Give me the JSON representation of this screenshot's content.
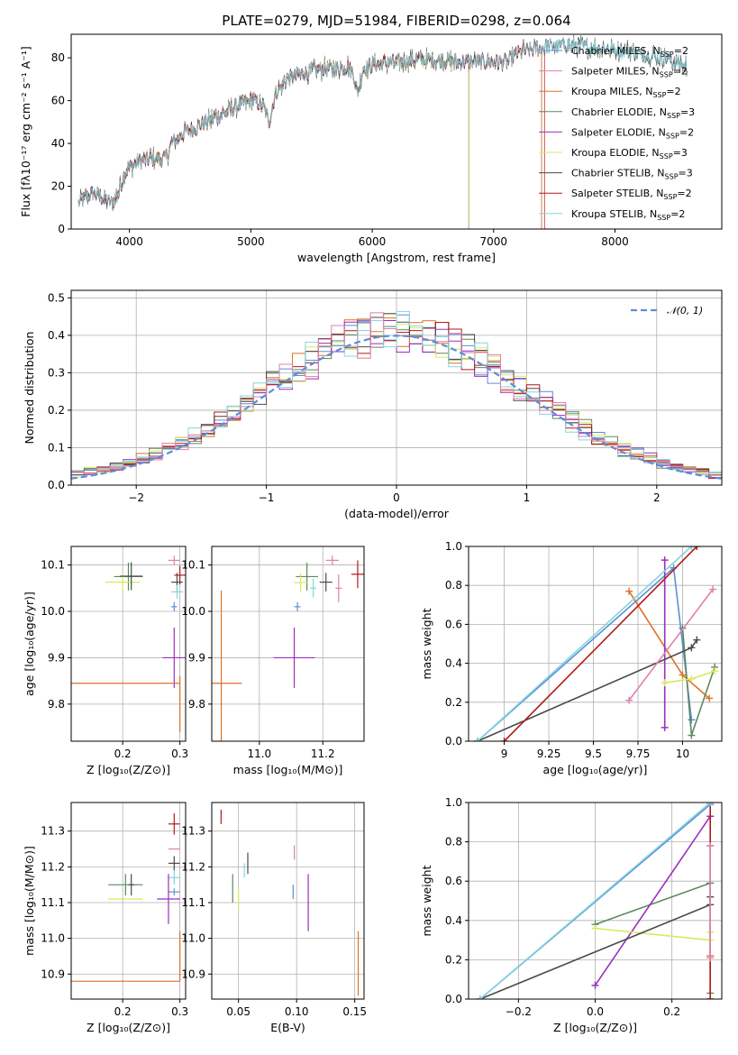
{
  "figure": {
    "title": "PLATE=0279, MJD=51984, FIBERID=0298, z=0.064"
  },
  "chart_data": [
    {
      "id": "spectrum",
      "type": "line",
      "xlabel": "wavelength [Angstrom, rest frame]",
      "ylabel": "Flux [fλ10⁻¹⁷ erg cm⁻² s⁻¹ A⁻¹]",
      "xlim": [
        3520,
        8880
      ],
      "ylim": [
        0,
        91
      ],
      "xticks": [
        4000,
        5000,
        6000,
        7000,
        8000
      ],
      "yticks": [
        0,
        20,
        40,
        60,
        80
      ],
      "grid": false,
      "legend_position": "right",
      "observed": {
        "name": "",
        "color": "#606060"
      },
      "continuum_anchors": [
        [
          3580,
          12
        ],
        [
          3700,
          17
        ],
        [
          3800,
          14
        ],
        [
          3850,
          12
        ],
        [
          3900,
          16
        ],
        [
          3950,
          24
        ],
        [
          4000,
          29
        ],
        [
          4100,
          32
        ],
        [
          4200,
          33
        ],
        [
          4300,
          33
        ],
        [
          4350,
          40
        ],
        [
          4450,
          45
        ],
        [
          4600,
          49
        ],
        [
          4700,
          52
        ],
        [
          4800,
          55
        ],
        [
          4900,
          58
        ],
        [
          5000,
          60
        ],
        [
          5100,
          58
        ],
        [
          5150,
          50
        ],
        [
          5200,
          63
        ],
        [
          5300,
          70
        ],
        [
          5400,
          72
        ],
        [
          5500,
          74
        ],
        [
          5600,
          75
        ],
        [
          5700,
          75
        ],
        [
          5800,
          76
        ],
        [
          5850,
          72
        ],
        [
          5880,
          63
        ],
        [
          5920,
          74
        ],
        [
          6000,
          77
        ],
        [
          6200,
          78
        ],
        [
          6400,
          79
        ],
        [
          6550,
          79
        ],
        [
          6700,
          78
        ],
        [
          6900,
          78
        ],
        [
          7100,
          78
        ],
        [
          7200,
          82
        ],
        [
          7400,
          85
        ],
        [
          7600,
          86
        ],
        [
          7800,
          85
        ],
        [
          8000,
          84
        ],
        [
          8200,
          82
        ],
        [
          8400,
          80
        ],
        [
          8600,
          76
        ]
      ],
      "series": [
        {
          "name": "Chabrier MILES, N_SSP=2",
          "color": "#5b8fd6",
          "end": 7400
        },
        {
          "name": "Salpeter MILES, N_SSP=2",
          "color": "#e07fae",
          "end": 7400
        },
        {
          "name": "Kroupa MILES, N_SSP=2",
          "color": "#de7127",
          "end": 7400
        },
        {
          "name": "Chabrier ELODIE, N_SSP=3",
          "color": "#5a8a5c",
          "end": 6800
        },
        {
          "name": "Salpeter ELODIE, N_SSP=2",
          "color": "#9b2fbb",
          "end": 6800
        },
        {
          "name": "Kroupa ELODIE, N_SSP=3",
          "color": "#d8ea5a",
          "end": 6800
        },
        {
          "name": "Chabrier STELIB, N_SSP=3",
          "color": "#4a4a4a",
          "end": 8700
        },
        {
          "name": "Salpeter STELIB, N_SSP=2",
          "color": "#b01a1a",
          "end": 7420
        },
        {
          "name": "Kroupa STELIB, N_SSP=2",
          "color": "#86d3dd",
          "end": 8700
        }
      ]
    },
    {
      "id": "residuals",
      "type": "area",
      "xlabel": "(data-model)/error",
      "ylabel": "Normed distribution",
      "xlim": [
        -2.5,
        2.5
      ],
      "ylim": [
        0,
        0.52
      ],
      "xticks": [
        -2,
        -1,
        0,
        1,
        2
      ],
      "yticks": [
        0.0,
        0.1,
        0.2,
        0.3,
        0.4,
        0.5
      ],
      "grid": true,
      "legend_position": "top-right",
      "reference": {
        "name": "𝒩(0, 1)",
        "color": "#5b8fd6",
        "mean": 0,
        "sigma": 1
      },
      "bin_width": 0.1,
      "series_colors": [
        "#5b8fd6",
        "#de7127",
        "#5a8a5c",
        "#9b2fbb",
        "#d8ea5a",
        "#4a4a4a",
        "#b01a1a",
        "#86d3dd",
        "#e07fae"
      ]
    },
    {
      "id": "age_vs_Z",
      "type": "scatter",
      "xlabel": "Z [log₁₀(Z/Z⊙)]",
      "ylabel": "age  [log₁₀(age/yr)]",
      "xlim": [
        0.11,
        0.31
      ],
      "ylim": [
        9.72,
        10.14
      ],
      "xticks": [
        0.2,
        0.3
      ],
      "yticks": [
        9.8,
        9.9,
        10.0,
        10.1
      ],
      "grid": true,
      "points": [
        {
          "x": 0.21,
          "y": 10.075,
          "ex": 0.025,
          "ey": 0.03,
          "color": "#5a8a5c"
        },
        {
          "x": 0.2,
          "y": 10.063,
          "ex": 0.03,
          "ey": 0.02,
          "color": "#d8ea5a"
        },
        {
          "x": 0.215,
          "y": 10.076,
          "ex": 0.02,
          "ey": 0.03,
          "color": "#4a4a4a"
        },
        {
          "x": 0.3,
          "y": 10.078,
          "ex": 0.01,
          "ey": 0.02,
          "color": "#b01a1a"
        },
        {
          "x": 0.29,
          "y": 10.11,
          "ex": 0.01,
          "ey": 0.01,
          "color": "#e07fae"
        },
        {
          "x": 0.295,
          "y": 10.063,
          "ex": 0.01,
          "ey": 0.02,
          "color": "#4a4a4a"
        },
        {
          "x": 0.295,
          "y": 10.042,
          "ex": 0.01,
          "ey": 0.015,
          "color": "#86d3dd"
        },
        {
          "x": 0.29,
          "y": 9.9,
          "ex": 0.02,
          "ey": 0.065,
          "color": "#9b2fbb"
        },
        {
          "x": 0.29,
          "y": 10.01,
          "ex": 0.005,
          "ey": 0.01,
          "color": "#5b8fd6"
        },
        {
          "x": 0.205,
          "y": 9.845,
          "ex": 0.095,
          "ey": 0.0,
          "color": "#de7127"
        },
        {
          "x": 0.3,
          "y": 9.8,
          "ex": 0.0,
          "ey": 0.06,
          "color": "#de7127"
        }
      ]
    },
    {
      "id": "age_vs_mass",
      "type": "scatter",
      "xlabel": "mass [log₁₀(M/M⊙)]",
      "ylabel": "",
      "xlim": [
        10.85,
        11.33
      ],
      "ylim": [
        9.72,
        10.14
      ],
      "xticks": [
        11.0,
        11.2
      ],
      "yticks": [
        9.8,
        9.9,
        10.0,
        10.1
      ],
      "grid": true,
      "points": [
        {
          "x": 10.88,
          "y": 9.845,
          "ex": 0.065,
          "ey": 0.2,
          "color": "#de7127"
        },
        {
          "x": 11.15,
          "y": 10.075,
          "ex": 0.035,
          "ey": 0.03,
          "color": "#5a8a5c"
        },
        {
          "x": 11.13,
          "y": 10.062,
          "ex": 0.02,
          "ey": 0.02,
          "color": "#d8ea5a"
        },
        {
          "x": 11.21,
          "y": 10.063,
          "ex": 0.02,
          "ey": 0.02,
          "color": "#4a4a4a"
        },
        {
          "x": 11.23,
          "y": 10.11,
          "ex": 0.02,
          "ey": 0.01,
          "color": "#e07fae"
        },
        {
          "x": 11.25,
          "y": 10.05,
          "ex": 0.01,
          "ey": 0.03,
          "color": "#e07fae"
        },
        {
          "x": 11.31,
          "y": 10.08,
          "ex": 0.02,
          "ey": 0.03,
          "color": "#b01a1a"
        },
        {
          "x": 11.17,
          "y": 10.05,
          "ex": 0.01,
          "ey": 0.02,
          "color": "#86d3dd"
        },
        {
          "x": 11.12,
          "y": 10.01,
          "ex": 0.01,
          "ey": 0.01,
          "color": "#5b8fd6"
        },
        {
          "x": 11.11,
          "y": 9.9,
          "ex": 0.065,
          "ey": 0.065,
          "color": "#9b2fbb"
        }
      ]
    },
    {
      "id": "weight_vs_age",
      "type": "line",
      "xlabel": "age  [log₁₀(age/yr)]",
      "ylabel": "mass weight",
      "xlim": [
        8.8,
        10.22
      ],
      "ylim": [
        0,
        1.0
      ],
      "xticks": [
        9.0,
        9.25,
        9.5,
        9.75,
        10.0
      ],
      "yticks": [
        0.0,
        0.2,
        0.4,
        0.6,
        0.8,
        1.0
      ],
      "grid": true,
      "series": [
        {
          "color": "#5b8fd6",
          "points": [
            [
              8.85,
              0.0
            ],
            [
              9.95,
              0.89
            ],
            [
              10.05,
              0.11
            ]
          ]
        },
        {
          "color": "#de7127",
          "points": [
            [
              9.7,
              0.77
            ],
            [
              10.0,
              0.34
            ],
            [
              10.15,
              0.22
            ]
          ]
        },
        {
          "color": "#5a8a5c",
          "points": [
            [
              10.0,
              0.58
            ],
            [
              10.05,
              0.03
            ],
            [
              10.18,
              0.38
            ]
          ]
        },
        {
          "color": "#9b2fbb",
          "points": [
            [
              9.9,
              0.93
            ],
            [
              9.9,
              0.07
            ]
          ]
        },
        {
          "color": "#d8ea5a",
          "points": [
            [
              9.9,
              0.3
            ],
            [
              10.05,
              0.32
            ],
            [
              10.18,
              0.36
            ]
          ]
        },
        {
          "color": "#4a4a4a",
          "points": [
            [
              8.85,
              0.0
            ],
            [
              10.05,
              0.48
            ],
            [
              10.08,
              0.52
            ]
          ]
        },
        {
          "color": "#b01a1a",
          "points": [
            [
              9.0,
              0.0
            ],
            [
              10.08,
              1.0
            ]
          ]
        },
        {
          "color": "#86d3dd",
          "points": [
            [
              8.85,
              0.0
            ],
            [
              10.05,
              1.0
            ]
          ]
        },
        {
          "color": "#e07fae",
          "points": [
            [
              9.7,
              0.21
            ],
            [
              10.17,
              0.78
            ]
          ]
        }
      ]
    },
    {
      "id": "mass_vs_Z",
      "type": "scatter",
      "xlabel": "Z [log₁₀(Z/Z⊙)]",
      "ylabel": "mass [log₁₀(M/M⊙)]",
      "xlim": [
        0.11,
        0.31
      ],
      "ylim": [
        10.83,
        11.38
      ],
      "xticks": [
        0.2,
        0.3
      ],
      "yticks": [
        10.9,
        11.0,
        11.1,
        11.2,
        11.3
      ],
      "grid": true,
      "points": [
        {
          "x": 0.205,
          "y": 11.15,
          "ex": 0.03,
          "ey": 0.03,
          "color": "#5a8a5c"
        },
        {
          "x": 0.205,
          "y": 11.11,
          "ex": 0.03,
          "ey": 0.0,
          "color": "#d8ea5a"
        },
        {
          "x": 0.215,
          "y": 11.15,
          "ex": 0.005,
          "ey": 0.03,
          "color": "#4a4a4a"
        },
        {
          "x": 0.29,
          "y": 11.32,
          "ex": 0.01,
          "ey": 0.03,
          "color": "#b01a1a"
        },
        {
          "x": 0.29,
          "y": 11.25,
          "ex": 0.01,
          "ey": 0.0,
          "color": "#e07fae"
        },
        {
          "x": 0.29,
          "y": 11.21,
          "ex": 0.01,
          "ey": 0.02,
          "color": "#4a4a4a"
        },
        {
          "x": 0.29,
          "y": 11.17,
          "ex": 0.01,
          "ey": 0.02,
          "color": "#86d3dd"
        },
        {
          "x": 0.29,
          "y": 11.13,
          "ex": 0.01,
          "ey": 0.01,
          "color": "#5b8fd6"
        },
        {
          "x": 0.28,
          "y": 11.11,
          "ex": 0.02,
          "ey": 0.07,
          "color": "#9b2fbb"
        },
        {
          "x": 0.205,
          "y": 10.88,
          "ex": 0.095,
          "ey": 0.0,
          "color": "#de7127"
        },
        {
          "x": 0.3,
          "y": 10.95,
          "ex": 0.0,
          "ey": 0.07,
          "color": "#de7127"
        }
      ]
    },
    {
      "id": "mass_vs_EBV",
      "type": "scatter",
      "xlabel": "E(B-V)",
      "ylabel": "",
      "xlim": [
        0.027,
        0.158
      ],
      "ylim": [
        10.83,
        11.38
      ],
      "xticks": [
        0.05,
        0.1,
        0.15
      ],
      "yticks": [
        10.9,
        11.0,
        11.1,
        11.2,
        11.3
      ],
      "grid": true,
      "points": [
        {
          "x": 0.035,
          "y": 11.34,
          "ex": 0.0,
          "ey": 0.02,
          "color": "#b01a1a"
        },
        {
          "x": 0.045,
          "y": 11.14,
          "ex": 0.0,
          "ey": 0.04,
          "color": "#5a8a5c"
        },
        {
          "x": 0.05,
          "y": 11.11,
          "ex": 0.0,
          "ey": 0.03,
          "color": "#d8ea5a"
        },
        {
          "x": 0.058,
          "y": 11.21,
          "ex": 0.0,
          "ey": 0.03,
          "color": "#4a4a4a"
        },
        {
          "x": 0.055,
          "y": 11.19,
          "ex": 0.0,
          "ey": 0.02,
          "color": "#86d3dd"
        },
        {
          "x": 0.098,
          "y": 11.24,
          "ex": 0.0,
          "ey": 0.02,
          "color": "#e07fae"
        },
        {
          "x": 0.097,
          "y": 11.13,
          "ex": 0.0,
          "ey": 0.02,
          "color": "#5b8fd6"
        },
        {
          "x": 0.11,
          "y": 11.1,
          "ex": 0.0,
          "ey": 0.08,
          "color": "#9b2fbb"
        },
        {
          "x": 0.153,
          "y": 10.93,
          "ex": 0.0,
          "ey": 0.09,
          "color": "#de7127"
        }
      ]
    },
    {
      "id": "weight_vs_Z",
      "type": "line",
      "xlabel": "Z [log₁₀(Z/Z⊙)]",
      "ylabel": "mass weight",
      "xlim": [
        -0.33,
        0.33
      ],
      "ylim": [
        0,
        1.0
      ],
      "xticks": [
        -0.2,
        0.0,
        0.2
      ],
      "yticks": [
        0.0,
        0.2,
        0.4,
        0.6,
        0.8,
        1.0
      ],
      "grid": true,
      "series": [
        {
          "color": "#5b8fd6",
          "points": [
            [
              -0.3,
              0.0
            ],
            [
              0.3,
              0.99
            ]
          ]
        },
        {
          "color": "#de7127",
          "points": [
            [
              0.3,
              0.78
            ],
            [
              0.3,
              0.22
            ]
          ]
        },
        {
          "color": "#5a8a5c",
          "points": [
            [
              0.0,
              0.38
            ],
            [
              0.3,
              0.59
            ],
            [
              0.3,
              0.03
            ]
          ]
        },
        {
          "color": "#9b2fbb",
          "points": [
            [
              0.0,
              0.07
            ],
            [
              0.3,
              0.93
            ]
          ]
        },
        {
          "color": "#d8ea5a",
          "points": [
            [
              0.0,
              0.36
            ],
            [
              0.3,
              0.3
            ],
            [
              0.3,
              0.34
            ]
          ]
        },
        {
          "color": "#4a4a4a",
          "points": [
            [
              -0.3,
              0.0
            ],
            [
              0.3,
              0.48
            ],
            [
              0.3,
              0.52
            ]
          ]
        },
        {
          "color": "#b01a1a",
          "points": [
            [
              0.3,
              0.0
            ],
            [
              0.3,
              1.0
            ]
          ]
        },
        {
          "color": "#86d3dd",
          "points": [
            [
              -0.3,
              0.0
            ],
            [
              0.3,
              1.0
            ]
          ]
        },
        {
          "color": "#e07fae",
          "points": [
            [
              0.3,
              0.21
            ],
            [
              0.3,
              0.78
            ]
          ]
        }
      ]
    }
  ]
}
